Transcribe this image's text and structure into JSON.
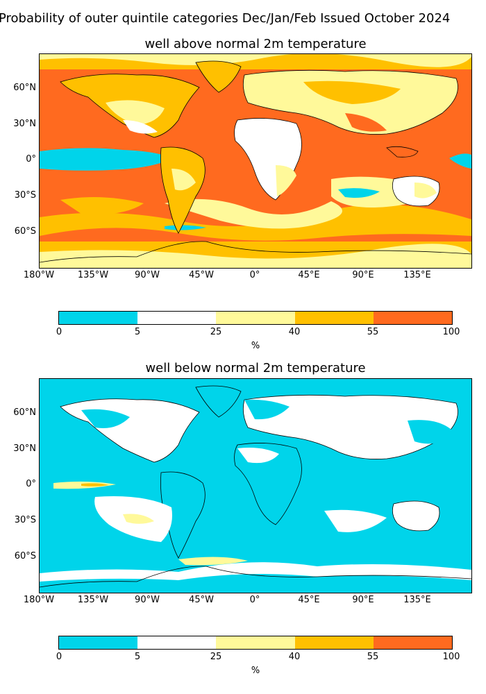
{
  "figure": {
    "title": "Probability of outer quintile categories Dec/Jan/Feb Issued October 2024"
  },
  "map_axes": {
    "lon_ticks": [
      "180°W",
      "135°W",
      "90°W",
      "45°W",
      "0°",
      "45°E",
      "90°E",
      "135°E"
    ],
    "lat_ticks": [
      "60°N",
      "30°N",
      "0°",
      "30°S",
      "60°S"
    ]
  },
  "panels": [
    {
      "title": "well above normal 2m temperature"
    },
    {
      "title": "well below normal 2m temperature"
    }
  ],
  "colorbar": {
    "ticks": [
      "0",
      "5",
      "25",
      "40",
      "55",
      "100"
    ],
    "unit": "%",
    "colors": [
      "#00d4ea",
      "#ffffff",
      "#fff99a",
      "#ffc000",
      "#ff6a1f"
    ]
  },
  "chart_data": [
    {
      "type": "heatmap",
      "title": "well above normal 2m temperature",
      "xlabel": "",
      "ylabel": "",
      "xlim": [
        -180,
        180
      ],
      "ylim": [
        -90,
        90
      ],
      "color_bins": [
        [
          0,
          5
        ],
        [
          5,
          25
        ],
        [
          25,
          40
        ],
        [
          40,
          55
        ],
        [
          55,
          100
        ]
      ],
      "colorbar_label": "%",
      "dominant_category": "55-100 over most oceans; 25-55 over continents; 0-5 in eastern equatorial Pacific"
    },
    {
      "type": "heatmap",
      "title": "well below normal 2m temperature",
      "xlabel": "",
      "ylabel": "",
      "xlim": [
        -180,
        180
      ],
      "ylim": [
        -90,
        90
      ],
      "color_bins": [
        [
          0,
          5
        ],
        [
          5,
          25
        ],
        [
          25,
          40
        ],
        [
          40,
          55
        ],
        [
          55,
          100
        ]
      ],
      "colorbar_label": "%",
      "dominant_category": "0-5 nearly everywhere; 5-25 over Eurasia, parts of N. America, S. Pacific"
    }
  ]
}
